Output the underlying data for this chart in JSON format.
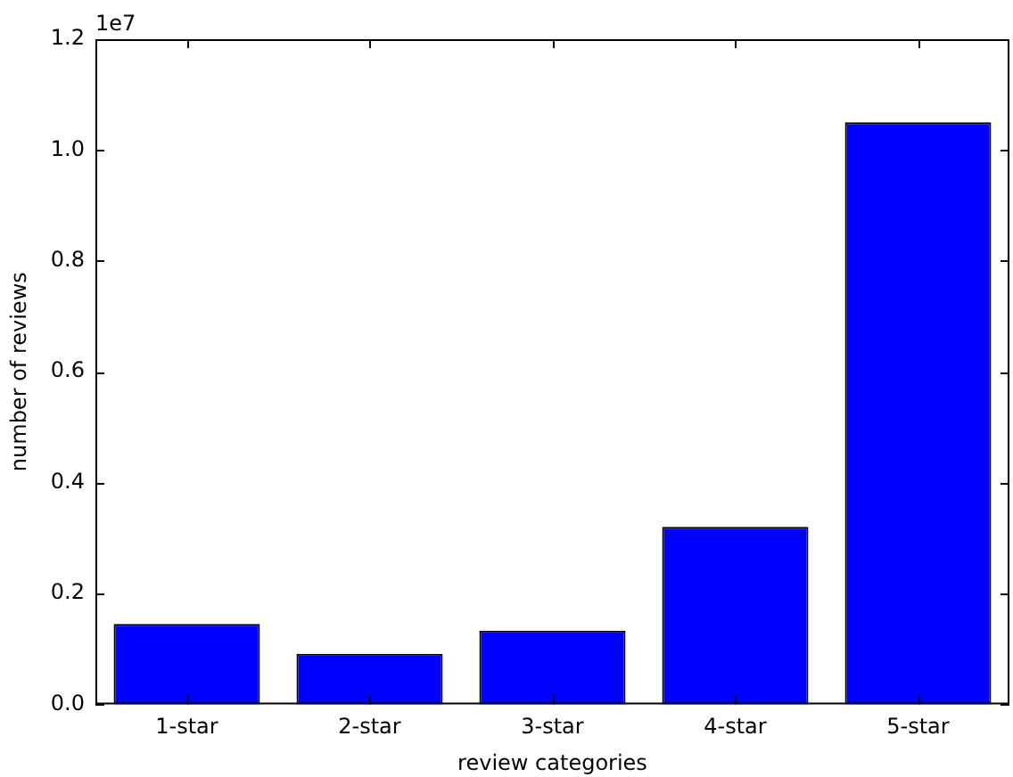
{
  "chart_data": {
    "type": "bar",
    "xlabel": "review categories",
    "ylabel": "number of reviews",
    "categories": [
      "1-star",
      "2-star",
      "3-star",
      "4-star",
      "5-star"
    ],
    "values": [
      0.145,
      0.091,
      0.133,
      0.32,
      1.05
    ],
    "color": "#0000ff",
    "ylim": [
      0,
      1.2
    ],
    "yticks": [
      {
        "value": 0,
        "label": "0.0"
      },
      0.2,
      0.4,
      0.6,
      0.8,
      {
        "value": 1,
        "label": "1.0"
      },
      1.2
    ],
    "annotations": [
      "1e7"
    ],
    "grid": false,
    "legend": false
  }
}
